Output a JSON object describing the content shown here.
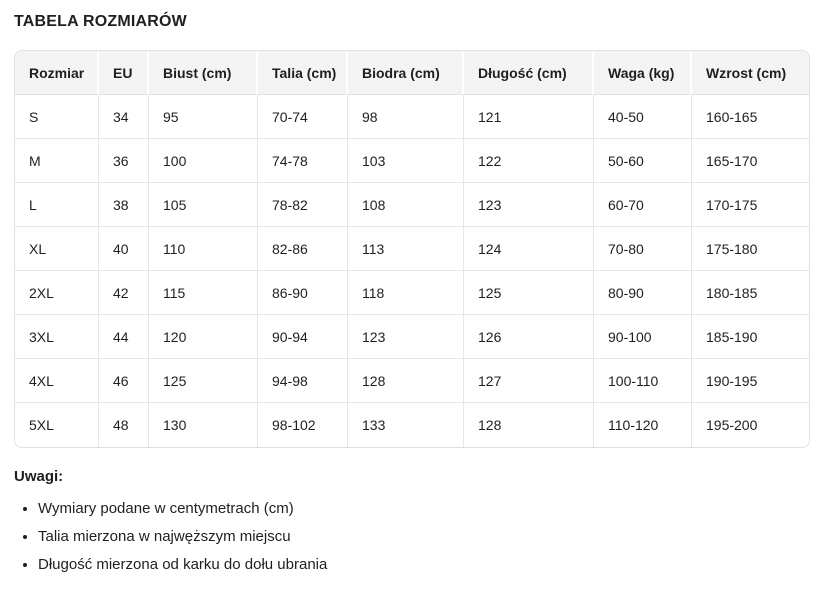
{
  "title": "TABELA ROZMIARÓW",
  "table": {
    "headers": [
      "Rozmiar",
      "EU",
      "Biust (cm)",
      "Talia (cm)",
      "Biodra (cm)",
      "Długość (cm)",
      "Waga (kg)",
      "Wzrost (cm)"
    ],
    "rows": [
      [
        "S",
        "34",
        "95",
        "70-74",
        "98",
        "121",
        "40-50",
        "160-165"
      ],
      [
        "M",
        "36",
        "100",
        "74-78",
        "103",
        "122",
        "50-60",
        "165-170"
      ],
      [
        "L",
        "38",
        "105",
        "78-82",
        "108",
        "123",
        "60-70",
        "170-175"
      ],
      [
        "XL",
        "40",
        "110",
        "82-86",
        "113",
        "124",
        "70-80",
        "175-180"
      ],
      [
        "2XL",
        "42",
        "115",
        "86-90",
        "118",
        "125",
        "80-90",
        "180-185"
      ],
      [
        "3XL",
        "44",
        "120",
        "90-94",
        "123",
        "126",
        "90-100",
        "185-190"
      ],
      [
        "4XL",
        "46",
        "125",
        "94-98",
        "128",
        "127",
        "100-110",
        "190-195"
      ],
      [
        "5XL",
        "48",
        "130",
        "98-102",
        "133",
        "128",
        "110-120",
        "195-200"
      ]
    ]
  },
  "notes": {
    "heading": "Uwagi:",
    "items": [
      "Wymiary podane w centymetrach (cm)",
      "Talia mierzona w najwęższym miejscu",
      "Długość mierzona od karku do dołu ubrania"
    ]
  },
  "colors": {
    "header_bg": "#f4f4f4",
    "outer_border": "#e0e0e0",
    "inner_border": "#e6e6e6",
    "header_separator": "#ffffff",
    "text": "#1f1f1f"
  }
}
